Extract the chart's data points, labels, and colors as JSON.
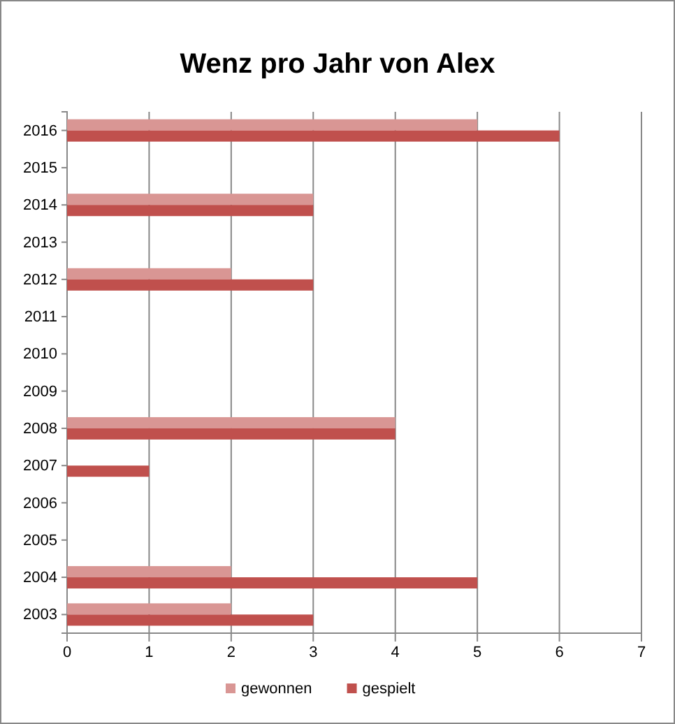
{
  "chart_data": {
    "type": "bar",
    "orientation": "horizontal",
    "title": "Wenz pro Jahr von Alex",
    "categories": [
      "2016",
      "2015",
      "2014",
      "2013",
      "2012",
      "2011",
      "2010",
      "2009",
      "2008",
      "2007",
      "2006",
      "2005",
      "2004",
      "2003"
    ],
    "series": [
      {
        "name": "gewonnen",
        "color": "#d99694",
        "values": [
          5,
          0,
          3,
          0,
          2,
          0,
          0,
          0,
          4,
          0,
          0,
          0,
          2,
          2
        ]
      },
      {
        "name": "gespielt",
        "color": "#c0504d",
        "values": [
          6,
          0,
          3,
          0,
          3,
          0,
          0,
          0,
          4,
          1,
          0,
          0,
          5,
          3
        ]
      }
    ],
    "xlim": [
      0,
      7
    ],
    "xticks": [
      0,
      1,
      2,
      3,
      4,
      5,
      6,
      7
    ],
    "grid": "x",
    "legend": "bottom"
  }
}
